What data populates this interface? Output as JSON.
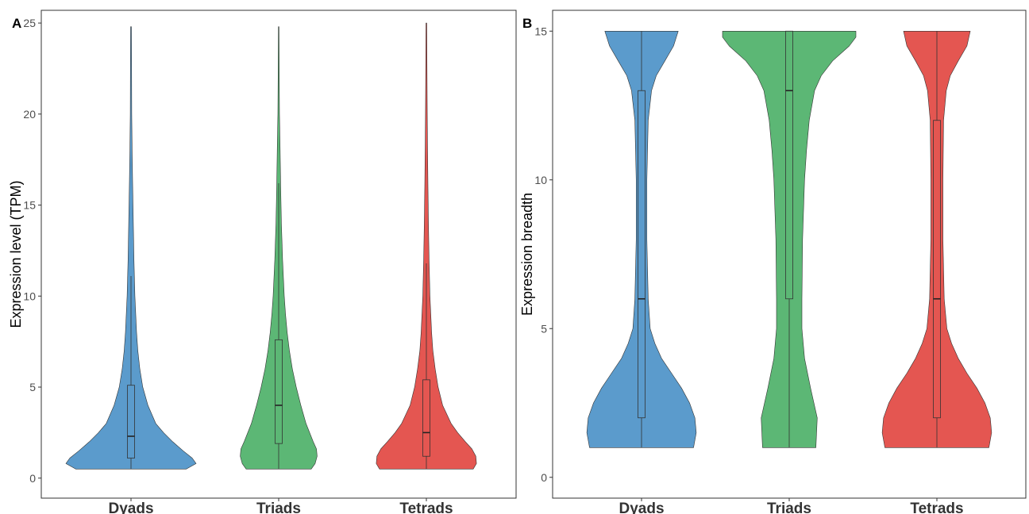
{
  "figure": {
    "panel_a_tag": "A",
    "panel_b_tag": "B"
  },
  "chart_data": [
    {
      "type": "violin",
      "panel": "A",
      "title": "",
      "xlabel": "",
      "ylabel": "Expression level (TPM)",
      "ylim": [
        -1.1,
        25.7
      ],
      "yticks": [
        0,
        5,
        10,
        15,
        20,
        25
      ],
      "grid": false,
      "legend": "none",
      "categories": [
        "Dyads",
        "Triads",
        "Tetrads"
      ],
      "colors": [
        "#5b9bcc",
        "#5cb775",
        "#e45651"
      ],
      "series": [
        {
          "category": "Dyads",
          "box": {
            "lower_whisker": 0.5,
            "q1": 1.1,
            "median": 2.3,
            "q3": 5.1,
            "upper_whisker": 11.1
          },
          "max": 24.8,
          "density": [
            [
              0.5,
              0.85
            ],
            [
              0.8,
              1.0
            ],
            [
              1.1,
              0.94
            ],
            [
              1.5,
              0.8
            ],
            [
              2.0,
              0.64
            ],
            [
              2.5,
              0.5
            ],
            [
              3.0,
              0.38
            ],
            [
              4.0,
              0.26
            ],
            [
              5.0,
              0.18
            ],
            [
              6.0,
              0.135
            ],
            [
              7.0,
              0.105
            ],
            [
              8.0,
              0.085
            ],
            [
              10.0,
              0.06
            ],
            [
              12.0,
              0.045
            ],
            [
              14.0,
              0.035
            ],
            [
              16.0,
              0.025
            ],
            [
              18.0,
              0.017
            ],
            [
              20.0,
              0.011
            ],
            [
              23.0,
              0.008
            ],
            [
              24.8,
              0.006
            ]
          ]
        },
        {
          "category": "Triads",
          "box": {
            "lower_whisker": 0.5,
            "q1": 1.9,
            "median": 4.0,
            "q3": 7.6,
            "upper_whisker": 16.2
          },
          "max": 24.8,
          "density": [
            [
              0.5,
              0.5
            ],
            [
              0.8,
              0.56
            ],
            [
              1.2,
              0.59
            ],
            [
              1.6,
              0.58
            ],
            [
              2.0,
              0.53
            ],
            [
              3.0,
              0.42
            ],
            [
              4.0,
              0.34
            ],
            [
              5.0,
              0.27
            ],
            [
              6.0,
              0.21
            ],
            [
              7.0,
              0.165
            ],
            [
              8.0,
              0.13
            ],
            [
              9.0,
              0.105
            ],
            [
              10.0,
              0.085
            ],
            [
              12.0,
              0.06
            ],
            [
              14.0,
              0.042
            ],
            [
              16.0,
              0.03
            ],
            [
              18.0,
              0.022
            ],
            [
              20.0,
              0.012
            ],
            [
              22.0,
              0.008
            ],
            [
              24.8,
              0.005
            ]
          ]
        },
        {
          "category": "Tetrads",
          "box": {
            "lower_whisker": 0.5,
            "q1": 1.2,
            "median": 2.5,
            "q3": 5.4,
            "upper_whisker": 11.8
          },
          "max": 25.0,
          "density": [
            [
              0.5,
              0.72
            ],
            [
              0.8,
              0.77
            ],
            [
              1.2,
              0.76
            ],
            [
              1.6,
              0.7
            ],
            [
              2.0,
              0.6
            ],
            [
              2.5,
              0.48
            ],
            [
              3.0,
              0.38
            ],
            [
              4.0,
              0.25
            ],
            [
              5.0,
              0.18
            ],
            [
              6.0,
              0.135
            ],
            [
              7.0,
              0.1
            ],
            [
              8.0,
              0.08
            ],
            [
              10.0,
              0.055
            ],
            [
              12.0,
              0.042
            ],
            [
              14.0,
              0.032
            ],
            [
              16.0,
              0.024
            ],
            [
              18.0,
              0.018
            ],
            [
              20.0,
              0.013
            ],
            [
              23.0,
              0.009
            ],
            [
              25.0,
              0.006
            ]
          ]
        }
      ]
    },
    {
      "type": "violin",
      "panel": "B",
      "title": "",
      "xlabel": "",
      "ylabel": "Expression breadth",
      "ylim": [
        -0.7,
        15.7
      ],
      "yticks": [
        0,
        5,
        10,
        15
      ],
      "grid": false,
      "legend": "none",
      "categories": [
        "Dyads",
        "Triads",
        "Tetrads"
      ],
      "colors": [
        "#5b9bcc",
        "#5cb775",
        "#e45651"
      ],
      "series": [
        {
          "category": "Dyads",
          "box": {
            "lower_whisker": 1,
            "q1": 2,
            "median": 6,
            "q3": 13,
            "upper_whisker": 15
          },
          "max": 15,
          "density": [
            [
              1.0,
              0.78
            ],
            [
              1.5,
              0.82
            ],
            [
              2.0,
              0.8
            ],
            [
              2.5,
              0.72
            ],
            [
              3.0,
              0.6
            ],
            [
              3.5,
              0.45
            ],
            [
              4.0,
              0.3
            ],
            [
              4.5,
              0.2
            ],
            [
              5.0,
              0.13
            ],
            [
              6.0,
              0.1
            ],
            [
              8.0,
              0.08
            ],
            [
              10.0,
              0.08
            ],
            [
              12.0,
              0.1
            ],
            [
              13.0,
              0.15
            ],
            [
              13.5,
              0.22
            ],
            [
              14.0,
              0.35
            ],
            [
              14.5,
              0.48
            ],
            [
              15.0,
              0.55
            ]
          ]
        },
        {
          "category": "Triads",
          "box": {
            "lower_whisker": 1,
            "q1": 6,
            "median": 13,
            "q3": 15,
            "upper_whisker": 15
          },
          "max": 15,
          "density": [
            [
              1.0,
              0.4
            ],
            [
              2.0,
              0.42
            ],
            [
              3.0,
              0.32
            ],
            [
              4.0,
              0.23
            ],
            [
              5.0,
              0.19
            ],
            [
              6.0,
              0.19
            ],
            [
              8.0,
              0.2
            ],
            [
              10.0,
              0.23
            ],
            [
              11.0,
              0.26
            ],
            [
              12.0,
              0.3
            ],
            [
              13.0,
              0.38
            ],
            [
              13.5,
              0.48
            ],
            [
              14.0,
              0.65
            ],
            [
              14.5,
              0.9
            ],
            [
              14.8,
              1.0
            ],
            [
              15.0,
              1.0
            ]
          ]
        },
        {
          "category": "Tetrads",
          "box": {
            "lower_whisker": 1,
            "q1": 2,
            "median": 6,
            "q3": 12,
            "upper_whisker": 15
          },
          "max": 15,
          "density": [
            [
              1.0,
              0.78
            ],
            [
              1.5,
              0.82
            ],
            [
              2.0,
              0.8
            ],
            [
              2.5,
              0.72
            ],
            [
              3.0,
              0.6
            ],
            [
              3.5,
              0.45
            ],
            [
              4.0,
              0.32
            ],
            [
              4.5,
              0.22
            ],
            [
              5.0,
              0.15
            ],
            [
              6.0,
              0.11
            ],
            [
              8.0,
              0.09
            ],
            [
              10.0,
              0.09
            ],
            [
              12.0,
              0.1
            ],
            [
              13.0,
              0.14
            ],
            [
              13.5,
              0.2
            ],
            [
              14.0,
              0.32
            ],
            [
              14.5,
              0.45
            ],
            [
              15.0,
              0.5
            ]
          ]
        }
      ]
    }
  ]
}
